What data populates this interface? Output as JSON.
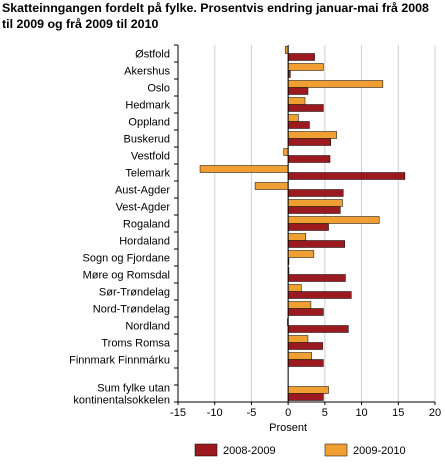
{
  "chart_data": {
    "type": "bar",
    "orientation": "horizontal",
    "title": "Skatteinngangen fordelt på fylke. Prosentvis endring januar-mai frå 2008 til 2009 og frå 2009 til 2010",
    "xlabel": "Prosent",
    "ylabel": "",
    "xlim": [
      -15,
      20
    ],
    "xticks": [
      -15,
      -10,
      -5,
      0,
      5,
      10,
      15,
      20
    ],
    "grid": "vertical",
    "legend": "bottom",
    "categories": [
      [
        "Østfold"
      ],
      [
        "Akershus"
      ],
      [
        "Oslo"
      ],
      [
        "Hedmark"
      ],
      [
        "Oppland"
      ],
      [
        "Buskerud"
      ],
      [
        "Vestfold"
      ],
      [
        "Telemark"
      ],
      [
        "Aust-Agder"
      ],
      [
        "Vest-Agder"
      ],
      [
        "Rogaland"
      ],
      [
        "Hordaland"
      ],
      [
        "Sogn og Fjordane"
      ],
      [
        "Møre og Romsdal"
      ],
      [
        "Sør-Trøndelag"
      ],
      [
        "Nord-Trøndelag"
      ],
      [
        "Nordland"
      ],
      [
        "Troms Romsa"
      ],
      [
        "Finnmark Finnmárku"
      ],
      [],
      [
        "Sum fylke utan",
        "kontinentalsokkelen"
      ]
    ],
    "series": [
      {
        "name": "2008-2009",
        "color": "#9b1a1f",
        "values": [
          3.6,
          0.3,
          2.7,
          4.8,
          2.9,
          5.8,
          5.7,
          15.9,
          7.5,
          7.1,
          5.5,
          7.7,
          0.1,
          7.8,
          8.6,
          4.8,
          8.2,
          4.7,
          4.8,
          null,
          4.8
        ]
      },
      {
        "name": "2009-2010",
        "color": "#f0a033",
        "values": [
          -0.4,
          4.8,
          12.9,
          2.3,
          1.4,
          6.6,
          -0.6,
          -12.0,
          -4.5,
          7.4,
          12.4,
          2.4,
          3.5,
          0.0,
          1.8,
          3.1,
          -0.1,
          2.7,
          3.2,
          null,
          5.5
        ]
      }
    ]
  }
}
